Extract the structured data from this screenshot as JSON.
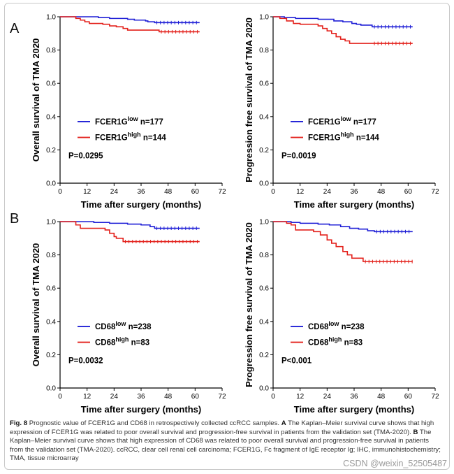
{
  "panel_labels": [
    "A",
    "B"
  ],
  "colors": {
    "low": "#1f1fd6",
    "high": "#e3201b"
  },
  "chart_data": [
    {
      "type": "line",
      "ylabel": "Overall survival of TMA 2020",
      "xlabel": "Time after surgery (months)",
      "xlim": [
        0,
        72
      ],
      "ylim": [
        0.0,
        1.0
      ],
      "xticks": [
        0,
        12,
        24,
        36,
        48,
        60,
        72
      ],
      "yticks": [
        0.0,
        0.2,
        0.4,
        0.6,
        0.8,
        1.0
      ],
      "pvalue": "P=0.0295",
      "series": [
        {
          "label": "FCER1G",
          "sup": "low",
          "n": "n=177",
          "color": "#1f1fd6",
          "x": [
            0,
            17,
            22,
            30,
            33,
            38,
            39,
            42,
            62
          ],
          "y": [
            1.0,
            0.995,
            0.99,
            0.985,
            0.98,
            0.975,
            0.97,
            0.965,
            0.965
          ]
        },
        {
          "label": "FCER1G",
          "sup": "high",
          "n": "n=144",
          "color": "#e3201b",
          "x": [
            0,
            7,
            9,
            11,
            13,
            19,
            22,
            25,
            28,
            30,
            44,
            62
          ],
          "y": [
            1.0,
            0.99,
            0.98,
            0.97,
            0.96,
            0.955,
            0.945,
            0.94,
            0.93,
            0.92,
            0.91,
            0.91
          ]
        }
      ]
    },
    {
      "type": "line",
      "ylabel": "Progression free survival of TMA 2020",
      "xlabel": "Time after surgery (months)",
      "xlim": [
        0,
        72
      ],
      "ylim": [
        0.0,
        1.0
      ],
      "xticks": [
        0,
        12,
        24,
        36,
        48,
        60,
        72
      ],
      "yticks": [
        0.0,
        0.2,
        0.4,
        0.6,
        0.8,
        1.0
      ],
      "pvalue": "P=0.0019",
      "series": [
        {
          "label": "FCER1G",
          "sup": "low",
          "n": "n=177",
          "color": "#1f1fd6",
          "x": [
            0,
            5,
            10,
            20,
            27,
            31,
            35,
            37,
            39,
            44,
            62
          ],
          "y": [
            1.0,
            0.995,
            0.99,
            0.985,
            0.975,
            0.97,
            0.96,
            0.955,
            0.95,
            0.94,
            0.94
          ]
        },
        {
          "label": "FCER1G",
          "sup": "high",
          "n": "n=144",
          "color": "#e3201b",
          "x": [
            0,
            3,
            6,
            9,
            12,
            20,
            22,
            24,
            26,
            28,
            30,
            32,
            34,
            44,
            62
          ],
          "y": [
            1.0,
            0.99,
            0.975,
            0.96,
            0.955,
            0.945,
            0.93,
            0.915,
            0.9,
            0.88,
            0.865,
            0.855,
            0.84,
            0.84,
            0.84
          ]
        }
      ]
    },
    {
      "type": "line",
      "ylabel": "Overall survival of TMA 2020",
      "xlabel": "Time after surgery (months)",
      "xlim": [
        0,
        72
      ],
      "ylim": [
        0.0,
        1.0
      ],
      "xticks": [
        0,
        12,
        24,
        36,
        48,
        60,
        72
      ],
      "yticks": [
        0.0,
        0.2,
        0.4,
        0.6,
        0.8,
        1.0
      ],
      "pvalue": "P=0.0032",
      "series": [
        {
          "label": "CD68",
          "sup": "low",
          "n": "n=238",
          "color": "#1f1fd6",
          "x": [
            0,
            15,
            22,
            30,
            36,
            40,
            42,
            62
          ],
          "y": [
            1.0,
            0.995,
            0.99,
            0.985,
            0.98,
            0.97,
            0.96,
            0.96
          ]
        },
        {
          "label": "CD68",
          "sup": "high",
          "n": "n=83",
          "color": "#e3201b",
          "x": [
            0,
            7,
            9,
            20,
            22,
            24,
            25,
            28,
            62
          ],
          "y": [
            1.0,
            0.98,
            0.96,
            0.95,
            0.93,
            0.91,
            0.9,
            0.88,
            0.88
          ]
        }
      ]
    },
    {
      "type": "line",
      "ylabel": "Progression free survival of TMA 2020",
      "xlabel": "Time after surgery (months)",
      "xlim": [
        0,
        72
      ],
      "ylim": [
        0.0,
        1.0
      ],
      "xticks": [
        0,
        12,
        24,
        36,
        48,
        60,
        72
      ],
      "yticks": [
        0.0,
        0.2,
        0.4,
        0.6,
        0.8,
        1.0
      ],
      "pvalue": "P<0.001",
      "series": [
        {
          "label": "CD68",
          "sup": "low",
          "n": "n=238",
          "color": "#1f1fd6",
          "x": [
            0,
            8,
            12,
            20,
            25,
            30,
            34,
            38,
            42,
            45,
            62
          ],
          "y": [
            1.0,
            0.995,
            0.99,
            0.985,
            0.98,
            0.97,
            0.96,
            0.955,
            0.945,
            0.94,
            0.94
          ]
        },
        {
          "label": "CD68",
          "sup": "high",
          "n": "n=83",
          "color": "#e3201b",
          "x": [
            0,
            6,
            8,
            10,
            18,
            21,
            24,
            26,
            28,
            31,
            33,
            35,
            40,
            62
          ],
          "y": [
            1.0,
            0.99,
            0.98,
            0.95,
            0.94,
            0.92,
            0.89,
            0.87,
            0.85,
            0.82,
            0.8,
            0.78,
            0.76,
            0.76
          ]
        }
      ]
    }
  ],
  "caption": {
    "fig": "Fig. 8",
    "text1": " Prognostic value of FCER1G and CD68 in retrospectively collected ccRCC samples. ",
    "boldA": "A",
    "text2": " The Kaplan–Meier survival curve shows that high expression of FCER1G was related to poor overall survival and progression-free survival in patients from the validation set (TMA-2020). ",
    "boldB": "B",
    "text3": " The Kaplan–Meier survival curve shows that high expression of CD68 was related to poor overall survival and progression-free survival in patients from the validation set (TMA-2020). ccRCC, clear cell renal cell carcinoma; FCER1G, Fc fragment of IgE receptor Ig; IHC, immunohistochemistry; TMA, tissue microarray"
  },
  "watermark": "CSDN @weixin_52505487"
}
